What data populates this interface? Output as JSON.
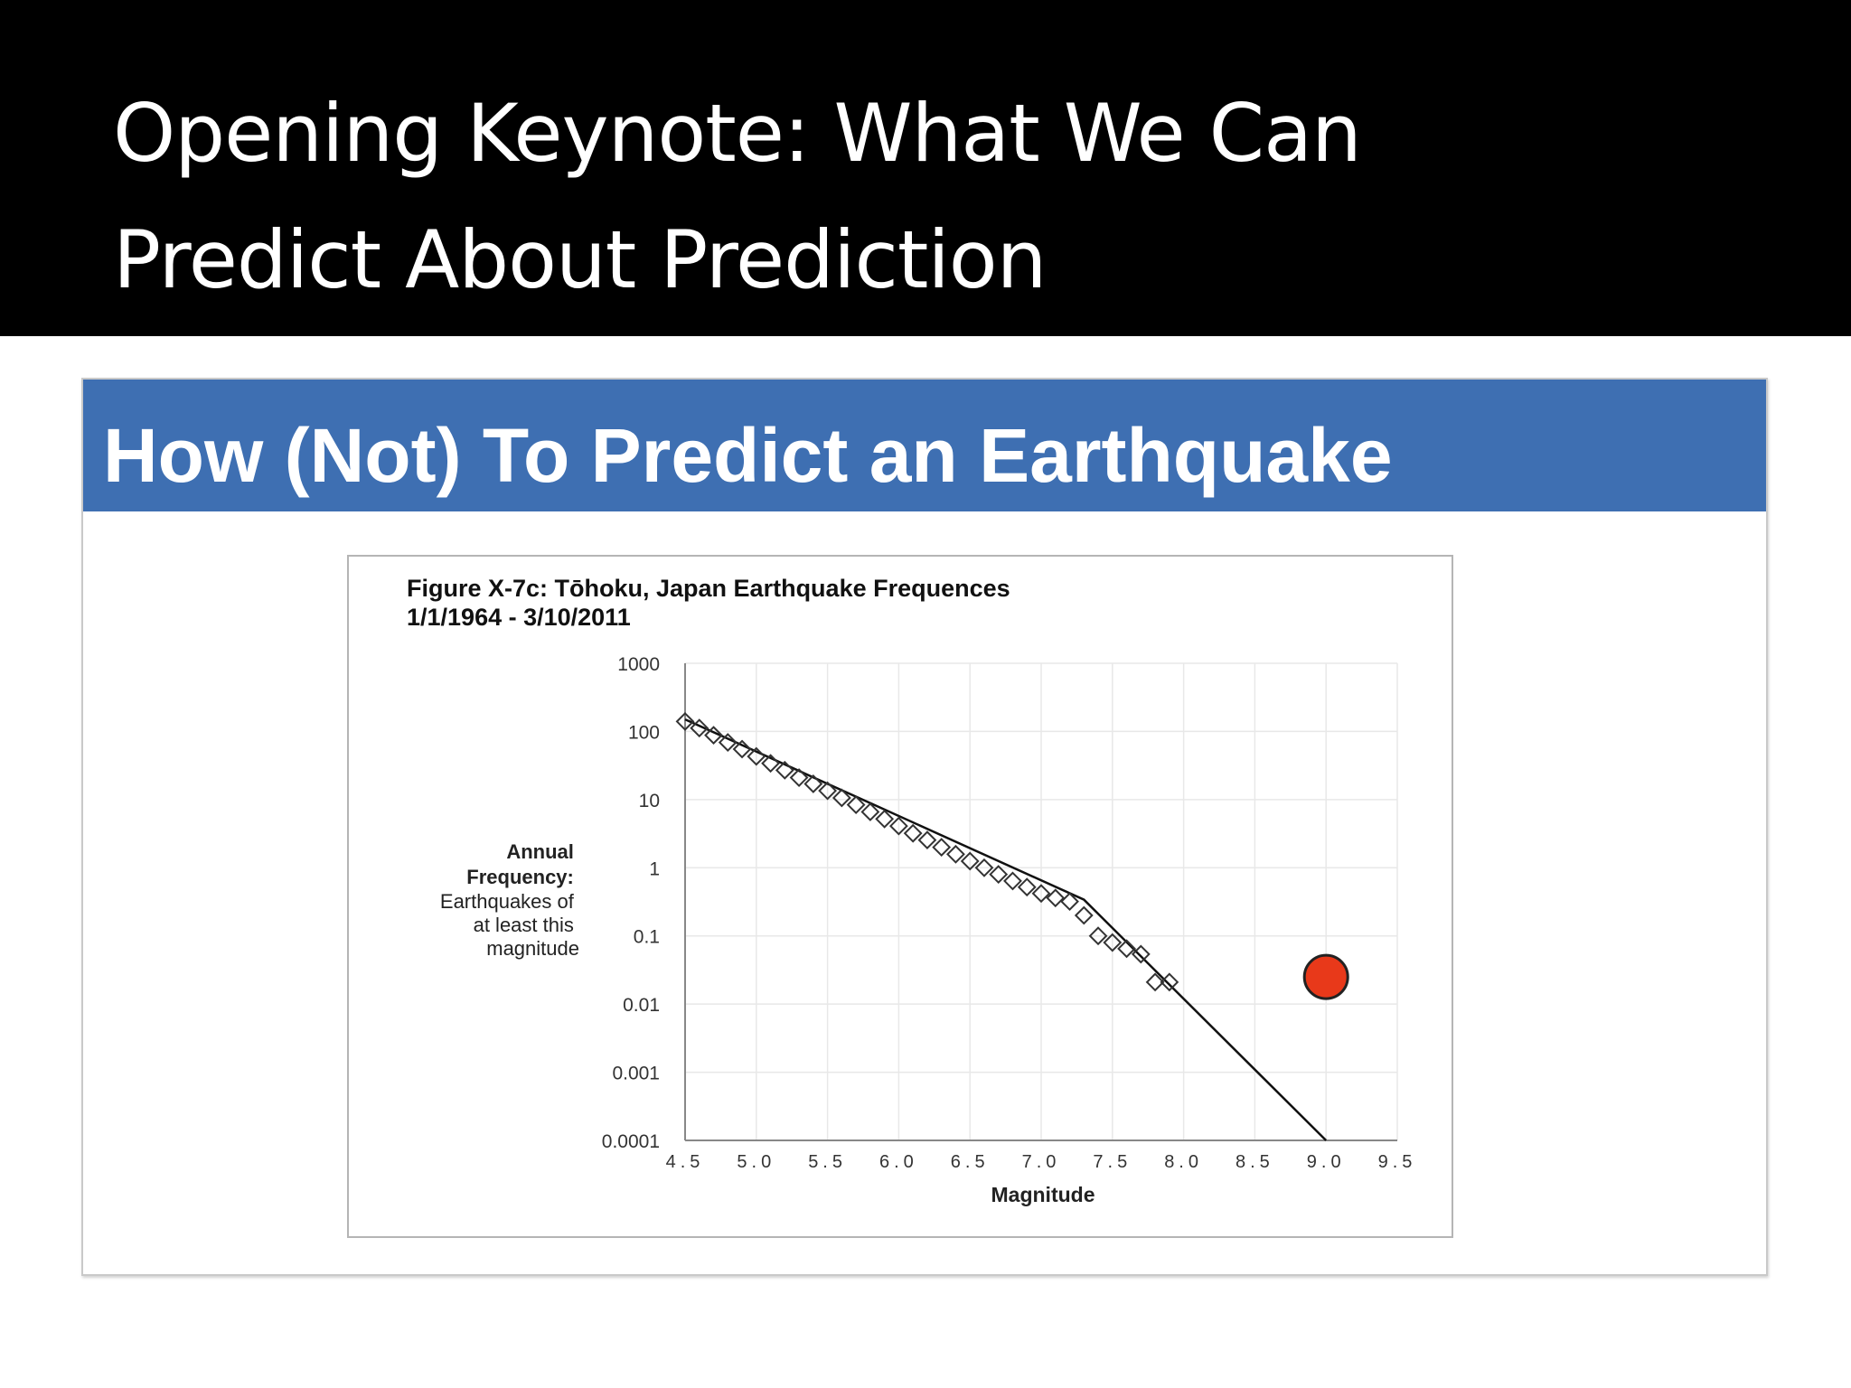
{
  "header": {
    "title_line1": "Opening Keynote: What We Can",
    "title_line2": "Predict About Prediction"
  },
  "slide": {
    "title": "How (Not) To Predict an Earthquake"
  },
  "chart_data": {
    "type": "scatter",
    "title": "Figure X-7c: Tōhoku, Japan Earthquake Frequences",
    "subtitle": "1/1/1964 - 3/10/2011",
    "xlabel": "Magnitude",
    "ylabel_lines": [
      "Annual",
      "Frequency:",
      "Earthquakes of",
      "at least this",
      "magnitude"
    ],
    "yscale": "log",
    "xlim": [
      4.5,
      9.5
    ],
    "ylim": [
      0.0001,
      1000
    ],
    "x_ticks": [
      "4.5",
      "5.0",
      "5.5",
      "6.0",
      "6.5",
      "7.0",
      "7.5",
      "8.0",
      "8.5",
      "9.0",
      "9.5"
    ],
    "y_ticks": [
      "1000",
      "100",
      "10",
      "1",
      "0.1",
      "0.01",
      "0.001",
      "0.0001"
    ],
    "grid": true,
    "series": [
      {
        "marker": "diamond-open",
        "x": [
          4.5,
          4.6,
          4.7,
          4.8,
          4.9,
          5.0,
          5.1,
          5.2,
          5.3,
          5.4,
          5.5,
          5.6,
          5.7,
          5.8,
          5.9,
          6.0,
          6.1,
          6.2,
          6.3,
          6.4,
          6.5,
          6.6,
          6.7,
          6.8,
          6.9,
          7.0,
          7.1,
          7.2,
          7.3,
          7.4,
          7.5,
          7.6,
          7.7,
          7.8,
          7.9
        ],
        "y": [
          140,
          112,
          88,
          69,
          55,
          43,
          34,
          27,
          21,
          17,
          13.5,
          10.6,
          8.4,
          6.6,
          5.2,
          4.1,
          3.2,
          2.55,
          2.0,
          1.58,
          1.25,
          1.0,
          0.8,
          0.64,
          0.52,
          0.42,
          0.36,
          0.32,
          0.2,
          0.1,
          0.08,
          0.065,
          0.054,
          0.021,
          0.021
        ]
      },
      {
        "marker": "line",
        "x": [
          4.5,
          7.3,
          9.0
        ],
        "y": [
          150,
          0.34,
          0.0001
        ]
      },
      {
        "marker": "circle-filled",
        "color": "#e8391a",
        "x": [
          9.0
        ],
        "y": [
          0.025
        ]
      }
    ]
  }
}
